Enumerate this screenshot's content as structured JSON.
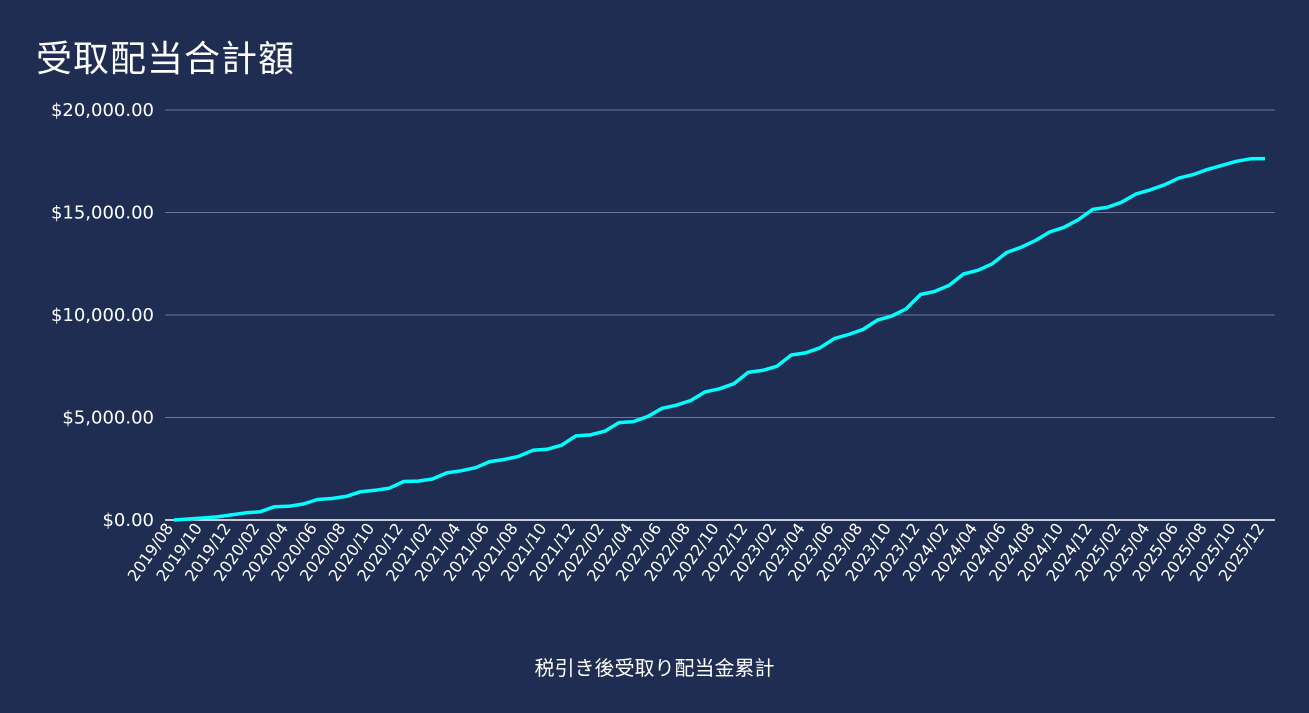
{
  "chart_data": {
    "type": "line",
    "title": "受取配当合計額",
    "xlabel": "税引き後受取り配当金累計",
    "ylabel": "",
    "ylim": [
      0,
      20000
    ],
    "y_ticks": [
      "$0.00",
      "$5,000.00",
      "$10,000.00",
      "$15,000.00",
      "$20,000.00"
    ],
    "y_tick_values": [
      0,
      5000,
      10000,
      15000,
      20000
    ],
    "grid": true,
    "legend": "none",
    "x_tick_labels": [
      "2019/08",
      "2019/10",
      "2019/12",
      "2020/02",
      "2020/04",
      "2020/06",
      "2020/08",
      "2020/10",
      "2020/12",
      "2021/02",
      "2021/04",
      "2021/06",
      "2021/08",
      "2021/10",
      "2021/12",
      "2022/02",
      "2022/04",
      "2022/06",
      "2022/08",
      "2022/10",
      "2022/12",
      "2023/02",
      "2023/04",
      "2023/06",
      "2023/08",
      "2023/10",
      "2023/12",
      "2024/02",
      "2024/04",
      "2024/06",
      "2024/08",
      "2024/10",
      "2024/12",
      "2025/02",
      "2025/04",
      "2025/06",
      "2025/08",
      "2025/10",
      "2025/12"
    ],
    "x": [
      "2019/08",
      "2019/09",
      "2019/10",
      "2019/11",
      "2019/12",
      "2020/01",
      "2020/02",
      "2020/03",
      "2020/04",
      "2020/05",
      "2020/06",
      "2020/07",
      "2020/08",
      "2020/09",
      "2020/10",
      "2020/11",
      "2020/12",
      "2021/01",
      "2021/02",
      "2021/03",
      "2021/04",
      "2021/05",
      "2021/06",
      "2021/07",
      "2021/08",
      "2021/09",
      "2021/10",
      "2021/11",
      "2021/12",
      "2022/01",
      "2022/02",
      "2022/03",
      "2022/04",
      "2022/05",
      "2022/06",
      "2022/07",
      "2022/08",
      "2022/09",
      "2022/10",
      "2022/11",
      "2022/12",
      "2023/01",
      "2023/02",
      "2023/03",
      "2023/04",
      "2023/05",
      "2023/06",
      "2023/07",
      "2023/08",
      "2023/09",
      "2023/10",
      "2023/11",
      "2023/12",
      "2024/01",
      "2024/02",
      "2024/03",
      "2024/04",
      "2024/05",
      "2024/06",
      "2024/07",
      "2024/08",
      "2024/09",
      "2024/10",
      "2024/11",
      "2024/12",
      "2025/01",
      "2025/02",
      "2025/03",
      "2025/04",
      "2025/05",
      "2025/06",
      "2025/07",
      "2025/08",
      "2025/09",
      "2025/10",
      "2025/11",
      "2025/12"
    ],
    "series": [
      {
        "color": "#00ffff",
        "values": [
          0,
          50,
          100,
          150,
          250,
          350,
          400,
          650,
          670,
          780,
          1000,
          1050,
          1150,
          1380,
          1450,
          1550,
          1880,
          1900,
          2000,
          2300,
          2400,
          2550,
          2850,
          2950,
          3100,
          3400,
          3450,
          3650,
          4100,
          4150,
          4330,
          4750,
          4800,
          5050,
          5450,
          5600,
          5830,
          6250,
          6400,
          6650,
          7200,
          7300,
          7500,
          8050,
          8150,
          8400,
          8850,
          9050,
          9300,
          9750,
          9950,
          10300,
          11000,
          11150,
          11450,
          12000,
          12180,
          12500,
          13050,
          13300,
          13630,
          14050,
          14280,
          14650,
          15150,
          15250,
          15500,
          15900,
          16100,
          16350,
          16680,
          16850,
          17100,
          17300,
          17500,
          17620,
          17630
        ]
      }
    ]
  },
  "colors": {
    "background": "#1f2d52",
    "line": "#00ffff",
    "grid": "#6b7794",
    "axis": "#ffffff"
  }
}
